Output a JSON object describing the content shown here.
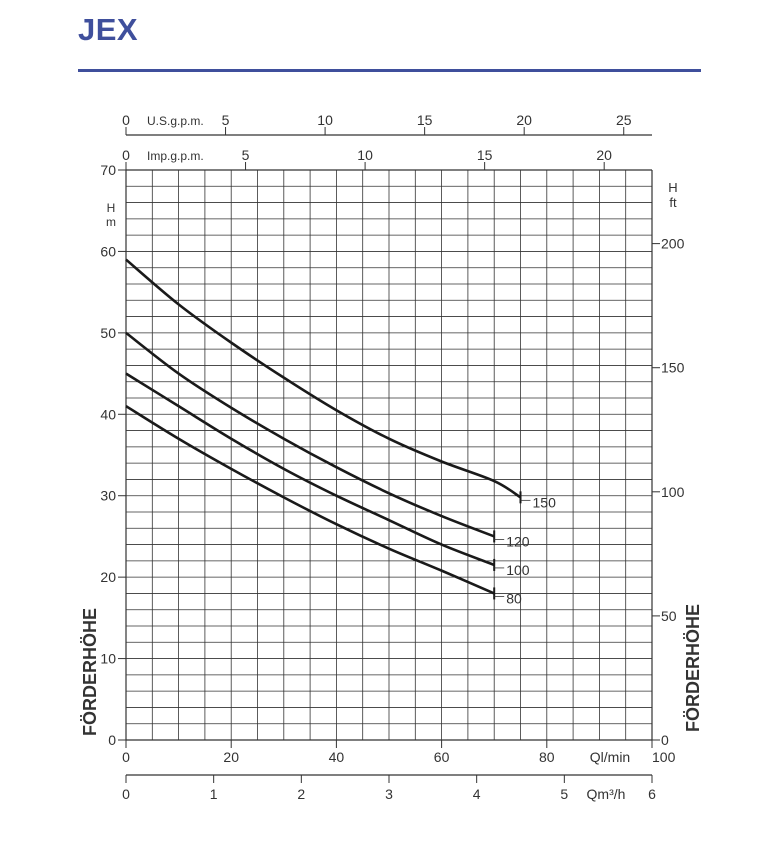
{
  "header": {
    "title": "JEX",
    "accent_color": "#3f4f9c"
  },
  "chart_data": {
    "type": "line",
    "title": "",
    "curve_color": "#1a1a1a",
    "grid": true,
    "grid_color": "#333333",
    "axes": {
      "left": {
        "label_unit": "H",
        "label_line2": "m",
        "ylim": [
          0,
          70
        ],
        "ticks": [
          0,
          10,
          20,
          30,
          40,
          50,
          60,
          70
        ]
      },
      "right": {
        "label_unit": "H",
        "label_line2": "ft",
        "ylim_ft": [
          0,
          229.66
        ],
        "ticks": [
          0,
          50,
          100,
          150,
          200
        ],
        "tick_labels": [
          "0",
          "50",
          "100",
          "150",
          "200"
        ]
      },
      "bottom": {
        "unit_label": "Ql/min",
        "xlim": [
          0,
          100
        ],
        "ticks": [
          0,
          20,
          40,
          60,
          80
        ],
        "tick_labels": [
          "0",
          "20",
          "40",
          "60",
          "80"
        ],
        "end_label": "100"
      },
      "bottom2": {
        "unit_label": "Qm³/h",
        "xlim": [
          0,
          6
        ],
        "ticks": [
          0,
          1,
          2,
          3,
          4,
          5
        ],
        "tick_labels": [
          "0",
          "1",
          "2",
          "3",
          "4",
          "5"
        ],
        "end_label": "6"
      },
      "top_us": {
        "unit_label": "U.S.g.p.m.",
        "xlim": [
          0,
          26.42
        ],
        "ticks": [
          0,
          5,
          10,
          15,
          20,
          25
        ],
        "tick_labels": [
          "0",
          "5",
          "10",
          "15",
          "20",
          "25"
        ]
      },
      "top_imp": {
        "unit_label": "Imp.g.p.m.",
        "xlim": [
          0,
          22
        ],
        "ticks": [
          0,
          5,
          10,
          15,
          20
        ],
        "tick_labels": [
          "0",
          "5",
          "10",
          "15",
          "20"
        ]
      }
    },
    "side_label": "FÖRDERHÖHE",
    "series": [
      {
        "name": "150",
        "x": [
          0,
          10,
          20,
          30,
          40,
          50,
          60,
          70,
          75
        ],
        "y": [
          59,
          53.5,
          48.8,
          44.5,
          40.5,
          37,
          34.2,
          31.8,
          29.8
        ]
      },
      {
        "name": "120",
        "x": [
          0,
          10,
          20,
          30,
          40,
          50,
          60,
          70
        ],
        "y": [
          50,
          45,
          40.8,
          37,
          33.5,
          30.3,
          27.5,
          25
        ]
      },
      {
        "name": "100",
        "x": [
          0,
          10,
          20,
          30,
          40,
          50,
          60,
          70
        ],
        "y": [
          45,
          41,
          37,
          33.3,
          30,
          27,
          24,
          21.5
        ]
      },
      {
        "name": "80",
        "x": [
          0,
          10,
          20,
          30,
          40,
          50,
          60,
          70
        ],
        "y": [
          41,
          37,
          33.3,
          29.8,
          26.5,
          23.5,
          20.8,
          18
        ]
      }
    ]
  }
}
